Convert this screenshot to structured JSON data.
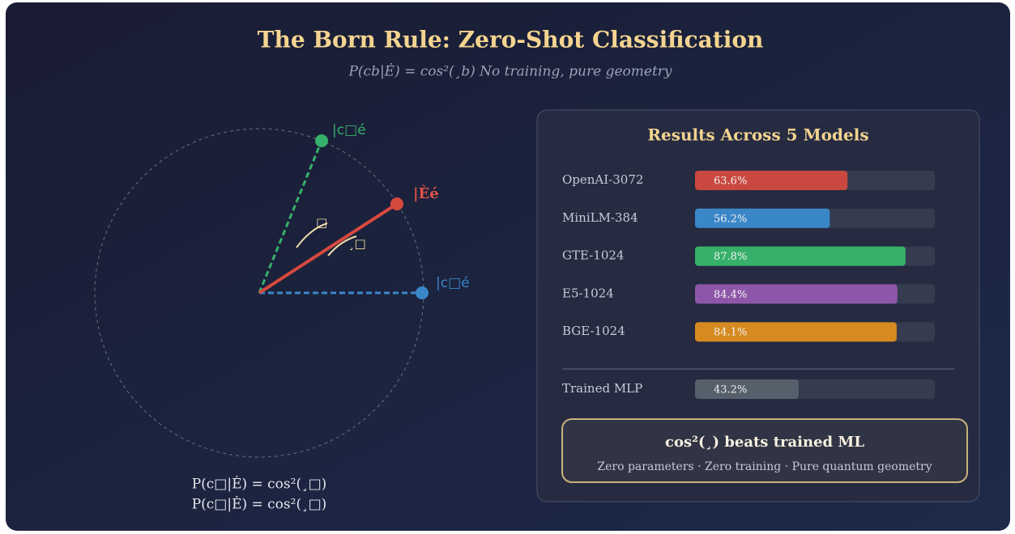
{
  "title": "The Born Rule: Zero-Shot Classification",
  "subtitle": "P(cb|Ė) = cos²(¸b) No training, pure geometry",
  "diagram": {
    "labels": [
      "|c□é",
      "|Èé",
      "|c□é"
    ],
    "angles": [
      "□",
      "¸□"
    ],
    "formulas": [
      "P(c□|Ė) = cos²(¸□)",
      "P(c□|Ė) = cos²(¸□)"
    ]
  },
  "results": {
    "title": "Results Across 5 Models",
    "xlim": [
      0,
      100
    ],
    "models": [
      {
        "name": "OpenAI-3072",
        "value": 63.6,
        "value_label": "63.6%",
        "color": "#c9483f"
      },
      {
        "name": "MiniLM-384",
        "value": 56.2,
        "value_label": "56.2%",
        "color": "#3a87c8"
      },
      {
        "name": "GTE-1024",
        "value": 87.8,
        "value_label": "87.8%",
        "color": "#36b06a"
      },
      {
        "name": "E5-1024",
        "value": 84.4,
        "value_label": "84.4%",
        "color": "#8e56a8"
      },
      {
        "name": "BGE-1024",
        "value": 84.1,
        "value_label": "84.1%",
        "color": "#d68a1f"
      }
    ],
    "baseline": {
      "name": "Trained MLP",
      "value": 43.2,
      "value_label": "43.2%",
      "color": "#56606a"
    }
  },
  "callout": {
    "title": "cos²(¸) beats trained ML",
    "text": "Zero parameters · Zero training · Pure quantum geometry"
  }
}
